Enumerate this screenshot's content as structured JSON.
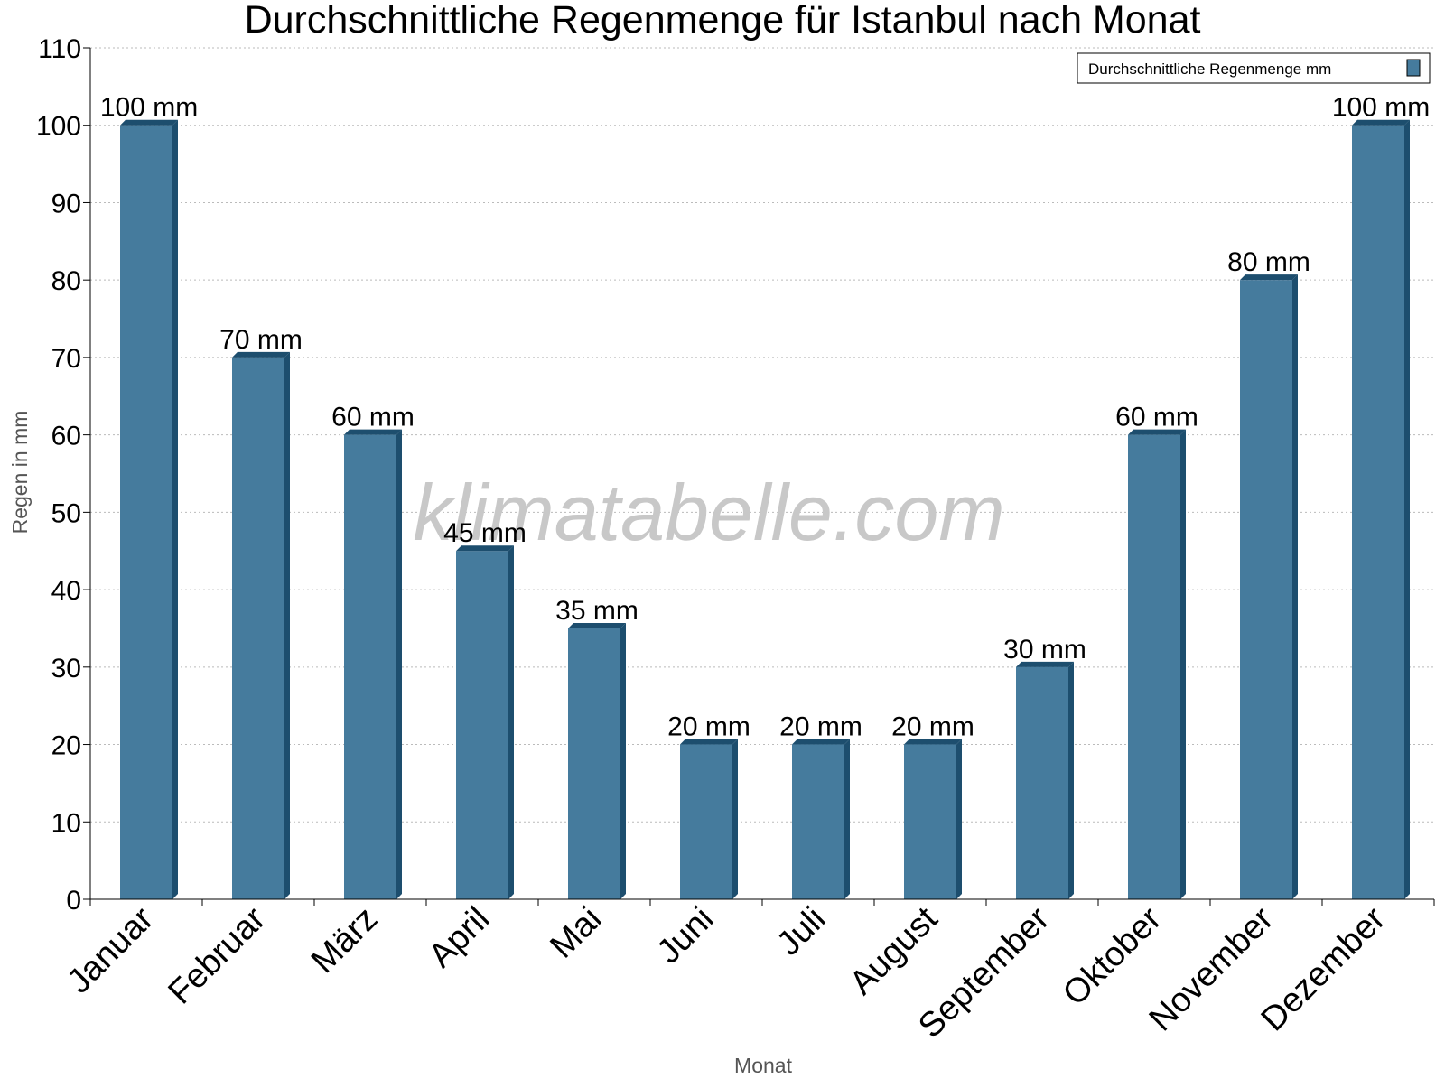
{
  "chart_data": {
    "type": "bar",
    "title": "Durchschnittliche Regenmenge für Istanbul nach Monat",
    "xlabel": "Monat",
    "ylabel": "Regen in mm",
    "categories": [
      "Januar",
      "Februar",
      "März",
      "April",
      "Mai",
      "Juni",
      "Juli",
      "August",
      "September",
      "Oktober",
      "November",
      "Dezember"
    ],
    "series": [
      {
        "name": "Durchschnittliche Regenmenge mm",
        "values": [
          100,
          70,
          60,
          45,
          35,
          20,
          20,
          20,
          30,
          60,
          80,
          100
        ]
      }
    ],
    "value_suffix": " mm",
    "ylim": [
      0,
      110
    ],
    "yticks": [
      0,
      10,
      20,
      30,
      40,
      50,
      60,
      70,
      80,
      90,
      100,
      110
    ],
    "grid": true,
    "legend_position": "top-right",
    "watermark": "klimatabelle.com",
    "colors": {
      "bar_front": "#457b9d",
      "bar_side": "#1d4e6e",
      "bar_top": "#1d4e6e",
      "grid": "#bbbbbb",
      "axis": "#000000",
      "axis_title": "#555555",
      "watermark": "#c8c8c8"
    }
  }
}
